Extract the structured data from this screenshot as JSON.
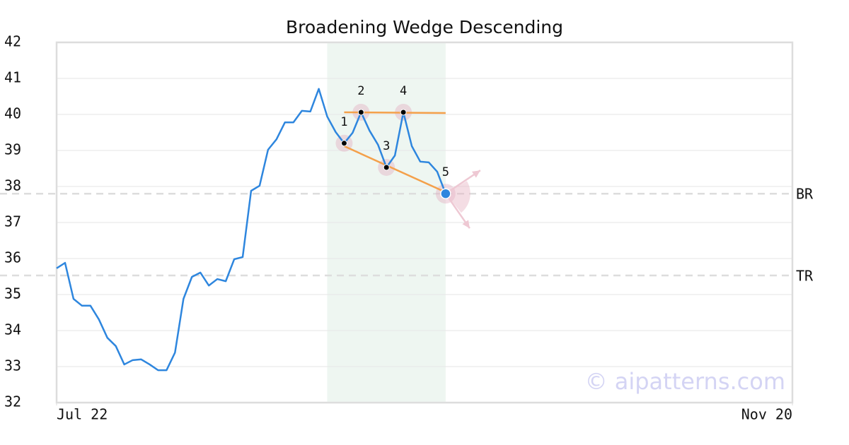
{
  "chart_data": {
    "type": "line",
    "title": "Broadening Wedge Descending",
    "xlim": [
      0,
      87
    ],
    "xticks": [
      {
        "value": 0,
        "label": "Jul 22"
      },
      {
        "value": 87,
        "label": "Nov 20"
      }
    ],
    "ylim": [
      32,
      42
    ],
    "yticks": [
      32,
      33,
      34,
      35,
      36,
      37,
      38,
      39,
      40,
      41,
      42
    ],
    "grid": true,
    "series": [
      {
        "color": "#2e86de",
        "x": [
          0,
          1,
          2,
          3,
          4,
          5,
          6,
          7,
          8,
          9,
          10,
          11,
          12,
          13,
          14,
          15,
          16,
          17,
          18,
          19,
          20,
          21,
          22,
          23,
          24,
          25,
          26,
          27,
          28,
          29,
          30,
          31,
          32,
          33,
          34,
          35,
          36,
          37,
          38,
          39,
          40,
          41,
          42,
          43,
          44,
          45,
          46
        ],
        "values": [
          35.73,
          35.88,
          34.88,
          34.69,
          34.69,
          34.31,
          33.8,
          33.57,
          33.06,
          33.18,
          33.2,
          33.06,
          32.9,
          32.9,
          33.39,
          34.88,
          35.49,
          35.61,
          35.25,
          35.43,
          35.37,
          35.98,
          36.04,
          37.88,
          38.02,
          39.02,
          39.31,
          39.78,
          39.78,
          40.1,
          40.08,
          40.71,
          39.94,
          39.51,
          39.2,
          39.49,
          40.06,
          39.55,
          39.16,
          38.53,
          38.86,
          40.06,
          39.12,
          38.69,
          38.67,
          38.41,
          37.8
        ]
      }
    ],
    "highlight": [
      32,
      46
    ],
    "pattern_points": {
      "labels": [
        "1",
        "2",
        "3",
        "4",
        "5"
      ],
      "x": [
        34,
        36,
        39,
        41,
        46
      ],
      "values": [
        39.2,
        40.06,
        38.53,
        40.06,
        37.8
      ]
    },
    "trend_lines": [
      {
        "color": "#f4a04a",
        "x": [
          34,
          46
        ],
        "values": [
          40.06,
          40.04
        ]
      },
      {
        "color": "#f4a04a",
        "x": [
          34,
          46
        ],
        "values": [
          39.12,
          37.84
        ]
      }
    ],
    "levels": [
      {
        "label": "BR",
        "value": 37.8
      },
      {
        "label": "TR",
        "value": 35.53
      }
    ],
    "watermark": "© aipatterns.com"
  }
}
